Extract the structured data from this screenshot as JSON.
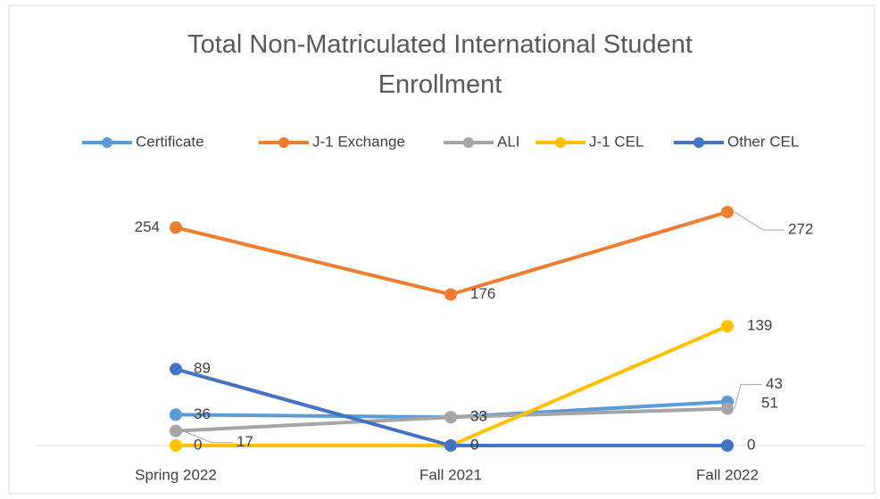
{
  "chart_data": {
    "type": "line",
    "title": "Total Non-Matriculated International Student Enrollment",
    "categories": [
      "Spring 2022",
      "Fall 2021",
      "Fall 2022"
    ],
    "series": [
      {
        "name": "Certificate",
        "color": "#5b9bd5",
        "values": [
          36,
          33,
          51
        ]
      },
      {
        "name": "J-1 Exchange",
        "color": "#ed7d31",
        "values": [
          254,
          176,
          272
        ]
      },
      {
        "name": "ALI",
        "color": "#a5a5a5",
        "values": [
          17,
          33,
          43
        ]
      },
      {
        "name": "J-1 CEL",
        "color": "#ffc000",
        "values": [
          0,
          0,
          139
        ]
      },
      {
        "name": "Other CEL",
        "color": "#4472c4",
        "values": [
          89,
          0,
          0
        ]
      }
    ],
    "ylim": [
      0,
      300
    ],
    "legend": "top"
  }
}
